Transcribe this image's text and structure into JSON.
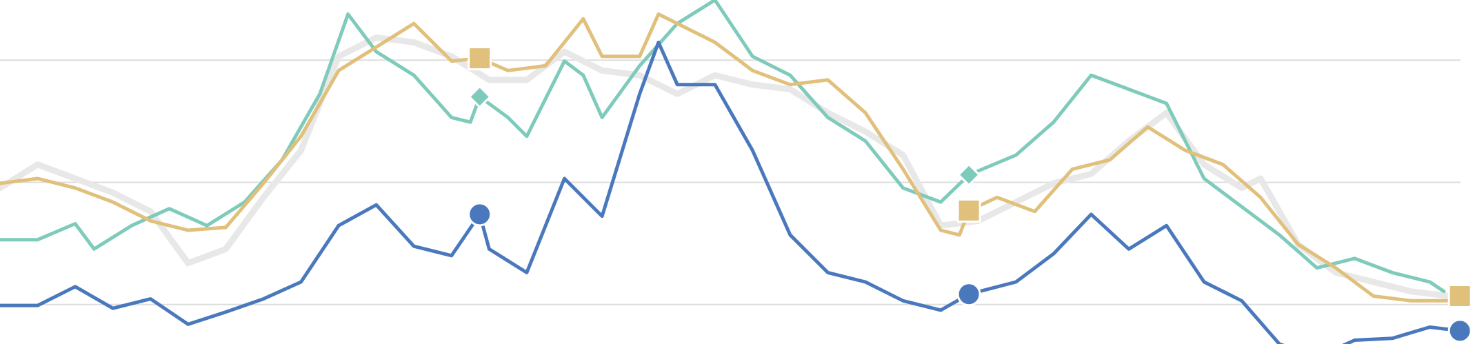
{
  "chart_data": {
    "type": "line",
    "xlim": [
      0,
      1568
    ],
    "ylim": [
      0,
      366
    ],
    "yticks": [
      42,
      172,
      302
    ],
    "grid": true,
    "series": [
      {
        "color": "#e8e8e8",
        "width": 9,
        "x": [
          0,
          40,
          80,
          120,
          160,
          200,
          240,
          280,
          320,
          360,
          400,
          440,
          480,
          520,
          560,
          600,
          640,
          680,
          720,
          760,
          800,
          840,
          880,
          920,
          960,
          1000,
          1040,
          1080,
          1120,
          1160,
          1200,
          1240,
          1280,
          1320,
          1340,
          1380,
          1420,
          1460,
          1500,
          1540
        ],
        "values": [
          166,
          191,
          176,
          161,
          141,
          86,
          101,
          156,
          206,
          306,
          326,
          321,
          306,
          281,
          281,
          311,
          291,
          286,
          266,
          286,
          276,
          271,
          246,
          226,
          201,
          126,
          131,
          151,
          171,
          181,
          216,
          246,
          191,
          166,
          176,
          106,
          76,
          66,
          56,
          51
        ]
      },
      {
        "color": "#7fcbbb",
        "width": 5,
        "marker": "diamond",
        "markers": [
          15,
          30
        ],
        "x": [
          0,
          40,
          80,
          100,
          140,
          180,
          220,
          260,
          300,
          340,
          370,
          400,
          440,
          480,
          500,
          510,
          540,
          560,
          600,
          620,
          640,
          680,
          720,
          760,
          800,
          840,
          880,
          920,
          960,
          1000,
          1030,
          1080,
          1120,
          1160,
          1200,
          1240,
          1280,
          1320,
          1360,
          1400,
          1440,
          1480,
          1520,
          1535
        ],
        "values": [
          111,
          111,
          128,
          101,
          126,
          144,
          126,
          151,
          196,
          266,
          351,
          311,
          286,
          241,
          236,
          263,
          241,
          221,
          301,
          286,
          241,
          296,
          341,
          366,
          306,
          286,
          241,
          216,
          166,
          151,
          180,
          201,
          236,
          286,
          271,
          256,
          176,
          146,
          116,
          81,
          91,
          76,
          66,
          56
        ]
      },
      {
        "color": "#e0c07a",
        "width": 5,
        "marker": "square",
        "markers": [
          13,
          29,
          43
        ],
        "x": [
          0,
          40,
          80,
          120,
          160,
          200,
          240,
          280,
          320,
          360,
          400,
          440,
          480,
          510,
          540,
          580,
          620,
          640,
          680,
          700,
          740,
          760,
          800,
          840,
          880,
          920,
          960,
          1000,
          1020,
          1030,
          1060,
          1100,
          1140,
          1180,
          1220,
          1260,
          1300,
          1340,
          1380,
          1420,
          1460,
          1500,
          1540,
          1552
        ],
        "values": [
          171,
          176,
          166,
          151,
          131,
          121,
          124,
          171,
          221,
          291,
          316,
          341,
          301,
          304,
          291,
          296,
          346,
          306,
          306,
          351,
          331,
          321,
          291,
          276,
          281,
          246,
          186,
          121,
          116,
          142,
          156,
          141,
          186,
          196,
          231,
          206,
          191,
          156,
          106,
          81,
          51,
          46,
          46,
          51
        ]
      },
      {
        "color": "#4a78bd",
        "width": 5,
        "marker": "circle",
        "markers": [
          13,
          28,
          41
        ],
        "x": [
          0,
          40,
          80,
          120,
          160,
          200,
          240,
          280,
          320,
          360,
          400,
          440,
          480,
          510,
          520,
          560,
          600,
          640,
          680,
          700,
          720,
          760,
          800,
          840,
          880,
          920,
          960,
          1000,
          1030,
          1080,
          1120,
          1160,
          1200,
          1240,
          1280,
          1320,
          1360,
          1400,
          1440,
          1480,
          1520,
          1552
        ],
        "values": [
          41,
          41,
          61,
          38,
          48,
          21,
          34,
          48,
          66,
          126,
          148,
          104,
          94,
          138,
          101,
          76,
          176,
          136,
          266,
          321,
          276,
          276,
          206,
          116,
          76,
          66,
          46,
          36,
          53,
          66,
          96,
          138,
          101,
          126,
          66,
          46,
          0,
          -14,
          4,
          6,
          18,
          14
        ]
      }
    ]
  }
}
